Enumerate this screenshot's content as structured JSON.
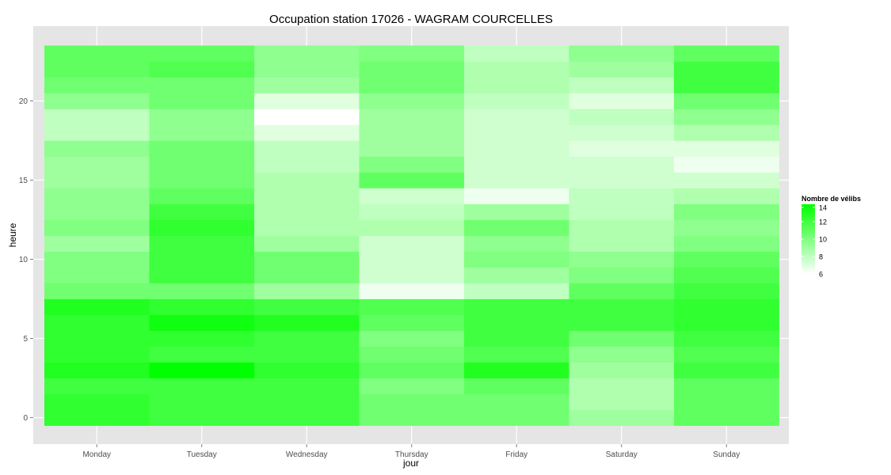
{
  "chart_data": {
    "type": "heatmap",
    "title": "Occupation station 17026 - WAGRAM COURCELLES",
    "xlabel": "jour",
    "ylabel": "heure",
    "x_categories": [
      "Monday",
      "Tuesday",
      "Wednesday",
      "Thursday",
      "Friday",
      "Saturday",
      "Sunday"
    ],
    "y_range": [
      0,
      23
    ],
    "y_ticks": [
      0,
      5,
      10,
      15,
      20
    ],
    "legend": {
      "title": "Nombre de vélibs",
      "ticks": [
        14,
        12,
        10,
        8,
        6
      ],
      "min": 6,
      "max": 14,
      "position": "right"
    },
    "colors": {
      "low": "#ffffff",
      "high": "#00ff00",
      "panel": "#e5e5e5",
      "grid": "#ffffff"
    },
    "grid": true,
    "values": [
      [
        12.5,
        12.0,
        12.0,
        10.5,
        10.5,
        9.0,
        11.0
      ],
      [
        12.5,
        12.0,
        12.0,
        10.5,
        10.5,
        8.5,
        11.0
      ],
      [
        12.0,
        12.0,
        12.0,
        10.0,
        11.0,
        8.5,
        11.0
      ],
      [
        13.0,
        14.5,
        12.5,
        11.0,
        13.0,
        9.0,
        12.0
      ],
      [
        12.5,
        12.0,
        12.0,
        10.5,
        11.5,
        9.5,
        11.5
      ],
      [
        12.5,
        12.5,
        12.0,
        10.0,
        12.0,
        10.5,
        12.0
      ],
      [
        12.5,
        13.5,
        13.0,
        11.0,
        12.0,
        12.0,
        12.5
      ],
      [
        13.0,
        12.5,
        12.0,
        11.5,
        12.0,
        12.0,
        12.5
      ],
      [
        10.5,
        10.5,
        9.0,
        6.5,
        8.0,
        11.0,
        12.0
      ],
      [
        10.0,
        12.0,
        10.5,
        7.5,
        9.0,
        10.0,
        11.5
      ],
      [
        10.0,
        12.0,
        10.5,
        7.5,
        10.0,
        9.5,
        11.0
      ],
      [
        9.0,
        12.0,
        9.0,
        7.5,
        9.5,
        8.5,
        10.0
      ],
      [
        10.0,
        12.5,
        8.5,
        8.5,
        10.5,
        8.5,
        9.5
      ],
      [
        9.5,
        12.0,
        8.5,
        8.0,
        9.0,
        8.0,
        10.0
      ],
      [
        9.5,
        11.0,
        8.5,
        7.5,
        6.5,
        8.0,
        8.5
      ],
      [
        9.0,
        10.5,
        8.5,
        11.0,
        7.5,
        7.5,
        7.5
      ],
      [
        9.0,
        10.5,
        8.0,
        10.0,
        7.5,
        7.5,
        6.5
      ],
      [
        9.5,
        10.5,
        8.0,
        9.0,
        7.5,
        7.0,
        7.0
      ],
      [
        8.0,
        9.5,
        7.0,
        9.0,
        7.5,
        7.5,
        8.5
      ],
      [
        8.0,
        9.5,
        6.0,
        9.0,
        7.5,
        8.0,
        9.5
      ],
      [
        9.5,
        10.5,
        7.0,
        9.5,
        8.0,
        7.0,
        10.5
      ],
      [
        10.5,
        10.5,
        9.0,
        10.5,
        8.5,
        8.0,
        12.0
      ],
      [
        11.0,
        11.5,
        9.5,
        10.5,
        8.5,
        9.0,
        12.0
      ],
      [
        11.0,
        11.0,
        9.5,
        10.0,
        8.0,
        9.5,
        11.0
      ]
    ]
  }
}
